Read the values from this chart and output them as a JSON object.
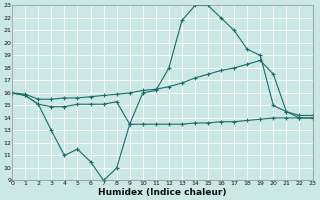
{
  "xlabel": "Humidex (Indice chaleur)",
  "xlim": [
    0,
    23
  ],
  "ylim": [
    9,
    23
  ],
  "yticks": [
    9,
    10,
    11,
    12,
    13,
    14,
    15,
    16,
    17,
    18,
    19,
    20,
    21,
    22,
    23
  ],
  "xticks": [
    0,
    1,
    2,
    3,
    4,
    5,
    6,
    7,
    8,
    9,
    10,
    11,
    12,
    13,
    14,
    15,
    16,
    17,
    18,
    19,
    20,
    21,
    22,
    23
  ],
  "bg_color": "#cce8e4",
  "line_color": "#1a6b6b",
  "grid_color": "#b0d8d4",
  "line1_x": [
    0,
    1,
    2,
    3,
    4,
    5,
    6,
    7,
    8,
    9,
    10,
    11,
    12,
    13,
    14,
    15,
    16,
    17,
    18,
    19,
    20,
    21,
    22,
    23
  ],
  "line1_y": [
    16,
    15.8,
    15.1,
    14.9,
    14.9,
    15.1,
    15.1,
    15.1,
    15.3,
    13.5,
    16,
    16.2,
    18,
    21.8,
    23,
    23,
    22,
    21,
    19.5,
    19,
    15,
    14.5,
    14,
    14
  ],
  "line2_x": [
    0,
    1,
    2,
    3,
    4,
    5,
    6,
    7,
    8,
    9,
    10,
    11,
    12,
    13,
    14,
    15,
    16,
    17,
    18,
    19,
    20,
    21,
    22,
    23
  ],
  "line2_y": [
    16,
    15.9,
    15.5,
    15.5,
    15.6,
    15.6,
    15.7,
    15.8,
    15.9,
    16.0,
    16.2,
    16.3,
    16.5,
    16.8,
    17.2,
    17.5,
    17.8,
    18.0,
    18.3,
    18.6,
    17.5,
    14.5,
    14.2,
    14.2
  ],
  "line3_x": [
    0,
    1,
    2,
    3,
    4,
    5,
    6,
    7,
    8,
    9,
    10,
    11,
    12,
    13,
    14,
    15,
    16,
    17,
    18,
    19,
    20,
    21,
    22,
    23
  ],
  "line3_y": [
    16,
    15.8,
    15.1,
    13,
    11,
    11.5,
    10.5,
    9,
    10,
    13.5,
    13.5,
    13.5,
    13.5,
    13.5,
    13.6,
    13.6,
    13.7,
    13.7,
    13.8,
    13.9,
    14,
    14,
    14,
    14
  ]
}
